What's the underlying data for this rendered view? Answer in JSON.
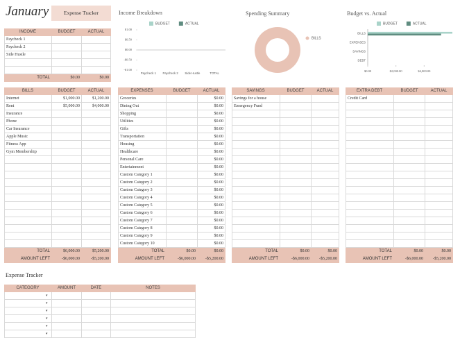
{
  "header": {
    "title": "January",
    "button": "Expense Tracker"
  },
  "income": {
    "headers": [
      "INCOME",
      "BUDGET",
      "ACTUAL"
    ],
    "rows": [
      {
        "name": "Paycheck 1"
      },
      {
        "name": "Paycheck 2"
      },
      {
        "name": "Side Hustle"
      }
    ],
    "total": {
      "label": "TOTAL",
      "budget": "$0.00",
      "actual": "$0.00"
    }
  },
  "bills": {
    "headers": [
      "BILLS",
      "BUDGET",
      "ACTUAL"
    ],
    "rows": [
      {
        "name": "Internet",
        "budget": "$1,000.00",
        "actual": "$1,200.00"
      },
      {
        "name": "Rent",
        "budget": "$5,000.00",
        "actual": "$4,000.00"
      },
      {
        "name": "Insurance"
      },
      {
        "name": "Phone"
      },
      {
        "name": "Car Insurance"
      },
      {
        "name": "Apple Music"
      },
      {
        "name": "Fitness App"
      },
      {
        "name": "Gym Membership"
      }
    ],
    "total": {
      "label": "TOTAL",
      "budget": "$6,000.00",
      "actual": "$5,200.00"
    },
    "amount_left": {
      "label": "AMOUNT LEFT",
      "budget": "-$6,000.00",
      "actual": "-$5,200.00"
    }
  },
  "expenses": {
    "headers": [
      "EXPENSES",
      "BUDGET",
      "ACTUAL"
    ],
    "rows": [
      {
        "name": "Groceries",
        "actual": "$0.00"
      },
      {
        "name": "Dining Out",
        "actual": "$0.00"
      },
      {
        "name": "Shopping",
        "actual": "$0.00"
      },
      {
        "name": "Utilities",
        "actual": "$0.00"
      },
      {
        "name": "Gifts",
        "actual": "$0.00"
      },
      {
        "name": "Transportation",
        "actual": "$0.00"
      },
      {
        "name": "Housing",
        "actual": "$0.00"
      },
      {
        "name": "Healthcare",
        "actual": "$0.00"
      },
      {
        "name": "Personal Care",
        "actual": "$0.00"
      },
      {
        "name": "Entertainment",
        "actual": "$0.00"
      },
      {
        "name": "Custom Category 1",
        "actual": "$0.00"
      },
      {
        "name": "Custom Category 2",
        "actual": "$0.00"
      },
      {
        "name": "Custom Category 3",
        "actual": "$0.00"
      },
      {
        "name": "Custom Category 4",
        "actual": "$0.00"
      },
      {
        "name": "Custom Category 5",
        "actual": "$0.00"
      },
      {
        "name": "Custom Category 6",
        "actual": "$0.00"
      },
      {
        "name": "Custom Category 7",
        "actual": "$0.00"
      },
      {
        "name": "Custom Category 8",
        "actual": "$0.00"
      },
      {
        "name": "Custom Category 9",
        "actual": "$0.00"
      },
      {
        "name": "Custom Category 10",
        "actual": "$0.00"
      }
    ],
    "total": {
      "label": "TOTAL",
      "budget": "$0.00",
      "actual": "$0.00"
    },
    "amount_left": {
      "label": "AMOUNT LEFT",
      "budget": "-$6,000.00",
      "actual": "-$5,200.00"
    }
  },
  "savings": {
    "headers": [
      "SAVINGS",
      "BUDGET",
      "ACTUAL"
    ],
    "rows": [
      {
        "name": "Savings for a house"
      },
      {
        "name": "Emergency Fund"
      }
    ],
    "total": {
      "label": "TOTAL",
      "budget": "$0.00",
      "actual": "$0.00"
    },
    "amount_left": {
      "label": "AMOUNT LEFT",
      "budget": "-$6,000.00",
      "actual": "-$5,200.00"
    }
  },
  "extra_debt": {
    "headers": [
      "EXTRA DEBT",
      "BUDGET",
      "ACTUAL"
    ],
    "rows": [
      {
        "name": "Credit Card"
      }
    ],
    "total": {
      "label": "TOTAL",
      "budget": "$0.00",
      "actual": "$0.00"
    },
    "amount_left": {
      "label": "AMOUNT LEFT",
      "budget": "-$6,000.00",
      "actual": "-$5,200.00"
    }
  },
  "tracker": {
    "title": "Expense Tracker",
    "headers": [
      "CATEGORY",
      "AMOUNT",
      "DATE",
      "NOTES"
    ]
  },
  "chart_data": [
    {
      "type": "bar",
      "title": "Income Breakdown",
      "categories": [
        "Paycheck 1",
        "Paycheck 2",
        "Side Hustle",
        "TOTAL"
      ],
      "series": [
        {
          "name": "BUDGET",
          "color": "#a9d3c9",
          "values": [
            0,
            0,
            0,
            0
          ]
        },
        {
          "name": "ACTUAL",
          "color": "#5f8c80",
          "values": [
            0,
            0,
            0,
            0
          ]
        }
      ],
      "ylim": [
        -1,
        1
      ],
      "yticks": [
        {
          "value": 1,
          "label": "$1.00"
        },
        {
          "value": 0.5,
          "label": "$0.50"
        },
        {
          "value": 0,
          "label": "$0.00"
        },
        {
          "value": -0.5,
          "label": "-$0.50"
        },
        {
          "value": -1,
          "label": "-$1.00"
        }
      ],
      "legend": "top"
    },
    {
      "type": "pie",
      "title": "Spending Summary",
      "categories": [
        "BILLS"
      ],
      "values": [
        5200
      ],
      "colors": [
        "#e8c3b5"
      ],
      "legend": "right"
    },
    {
      "type": "bar",
      "title": "Budget vs. Actual",
      "horizontal": true,
      "categories": [
        "BILLS",
        "EXPENSES",
        "SAVINGS",
        "DEBT"
      ],
      "series": [
        {
          "name": "BUDGET",
          "color": "#a9d3c9",
          "values": [
            6000,
            0,
            0,
            0
          ]
        },
        {
          "name": "ACTUAL",
          "color": "#5f8c80",
          "values": [
            5200,
            0,
            0,
            0
          ]
        }
      ],
      "xlim": [
        0,
        6000
      ],
      "xticks": [
        {
          "value": 0,
          "label": "$0.00"
        },
        {
          "value": 2000,
          "label": "$2,000.00"
        },
        {
          "value": 4000,
          "label": "$4,000.00"
        }
      ],
      "legend": "top"
    }
  ]
}
